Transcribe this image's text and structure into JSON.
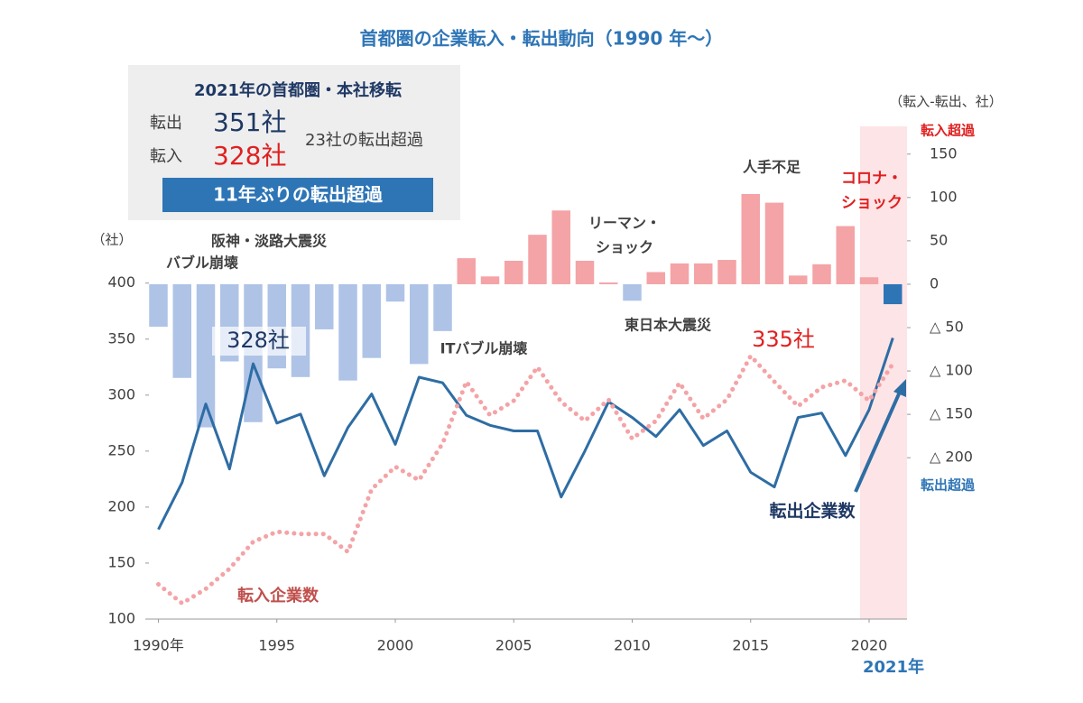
{
  "chart_data": {
    "type": "bar-line",
    "title": "首都圏の企業転入・転出動向（1990 年～）",
    "y_label": "（社）",
    "y2_label": "（転入-転出、社）",
    "y2_top_note": "転入超過",
    "y2_bottom_note": "転出超過",
    "x": [
      1990,
      1991,
      1992,
      1993,
      1994,
      1995,
      1996,
      1997,
      1998,
      1999,
      2000,
      2001,
      2002,
      2003,
      2004,
      2005,
      2006,
      2007,
      2008,
      2009,
      2010,
      2011,
      2012,
      2013,
      2014,
      2015,
      2016,
      2017,
      2018,
      2019,
      2020,
      2021
    ],
    "xlim": [
      1989.6,
      2021.6
    ],
    "xticks": [
      {
        "value": 1990,
        "label": "1990年"
      },
      1995,
      2000,
      2005,
      2010,
      2015,
      2020
    ],
    "ylim": [
      100,
      540
    ],
    "yticks": [
      100,
      150,
      200,
      250,
      300,
      350,
      400
    ],
    "y2lim": [
      -386,
      182
    ],
    "y2ticks": [
      {
        "value": -200,
        "label": "△ 200"
      },
      {
        "value": -150,
        "label": "△ 150"
      },
      {
        "value": -100,
        "label": "△ 100"
      },
      {
        "value": -50,
        "label": "△ 50"
      },
      0,
      50,
      100,
      150
    ],
    "series": [
      {
        "type": "bar",
        "axis": "y2",
        "values": [
          -49,
          -108,
          -165,
          -89,
          -159,
          -97,
          -107,
          -52,
          -111,
          -85,
          -20,
          -92,
          -54,
          30,
          9,
          27,
          57,
          85,
          27,
          2,
          -19,
          14,
          24,
          24,
          28,
          104,
          94,
          10,
          23,
          67,
          8,
          -23
        ],
        "colors": [
          "#aec3e6",
          "#aec3e6",
          "#aec3e6",
          "#aec3e6",
          "#aec3e6",
          "#aec3e6",
          "#aec3e6",
          "#aec3e6",
          "#aec3e6",
          "#aec3e6",
          "#aec3e6",
          "#aec3e6",
          "#aec3e6",
          "#f4a3a6",
          "#f4a3a6",
          "#f4a3a6",
          "#f4a3a6",
          "#f4a3a6",
          "#f4a3a6",
          "#f4a3a6",
          "#aec3e6",
          "#f4a3a6",
          "#f4a3a6",
          "#f4a3a6",
          "#f4a3a6",
          "#f4a3a6",
          "#f4a3a6",
          "#f4a3a6",
          "#f4a3a6",
          "#f4a3a6",
          "#f4a3a6",
          "#2e75b6"
        ]
      },
      {
        "type": "line",
        "name": "転出企業数",
        "color": "#2e6da4",
        "values": [
          180,
          222,
          292,
          234,
          328,
          275,
          283,
          228,
          271,
          301,
          256,
          316,
          311,
          282,
          273,
          268,
          268,
          209,
          250,
          294,
          280,
          263,
          287,
          255,
          268,
          231,
          218,
          280,
          284,
          246,
          287,
          351
        ]
      },
      {
        "type": "line",
        "name": "転入企業数",
        "color": "#f4a3a6",
        "dotted": true,
        "values": [
          131,
          114,
          127,
          145,
          169,
          178,
          176,
          176,
          160,
          216,
          236,
          224,
          257,
          312,
          282,
          295,
          325,
          294,
          277,
          296,
          261,
          277,
          311,
          279,
          296,
          335,
          312,
          290,
          307,
          313,
          295,
          328
        ]
      }
    ],
    "highlight_year_label": "2021年",
    "summary": {
      "title": "2021年の首都圏・本社移転",
      "out_label": "転出",
      "out_value": "351社",
      "in_label": "転入",
      "in_value": "328社",
      "net": "23社の転出超過",
      "banner": "11年ぶりの転出超過"
    },
    "annotations": [
      "阪神・淡路大震災",
      "バブル崩壊",
      "328社",
      "ITバブル崩壊",
      "リーマン・",
      "ショック",
      "東日本大震災",
      "人手不足",
      "335社",
      "コロナ・",
      "ショック"
    ]
  }
}
